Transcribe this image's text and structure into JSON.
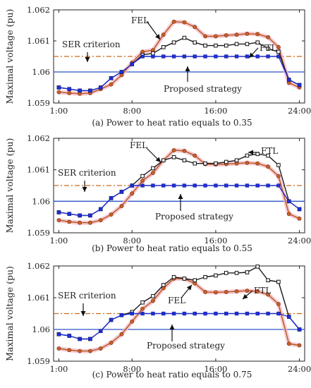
{
  "chart_data": [
    {
      "type": "line",
      "caption": "(a) Power to heat ratio equals to 0.35",
      "ylabel": "Maximal voltage (pu)",
      "xlim": [
        0.5,
        24.5
      ],
      "ylim": [
        1.059,
        1.062
      ],
      "xticks": [
        1,
        8,
        16,
        24
      ],
      "xtick_labels": [
        "1:00",
        "8:00",
        "16:00",
        "24:00"
      ],
      "yticks": [
        1.059,
        1.06,
        1.061,
        1.062
      ],
      "ytick_labels": [
        "1.059",
        "1.06",
        "1.061",
        "1.062"
      ],
      "x": [
        1,
        2,
        3,
        4,
        5,
        6,
        7,
        8,
        9,
        10,
        11,
        12,
        13,
        14,
        15,
        16,
        17,
        18,
        19,
        20,
        21,
        22,
        23,
        24
      ],
      "series": [
        {
          "name": "FEL",
          "color": "#b8541c",
          "marker": "circle",
          "values": [
            1.05935,
            1.05932,
            1.0593,
            1.05932,
            1.05945,
            1.0596,
            1.0599,
            1.0603,
            1.06065,
            1.0607,
            1.0612,
            1.06162,
            1.0616,
            1.06145,
            1.06115,
            1.06115,
            1.06118,
            1.0612,
            1.06123,
            1.06122,
            1.06112,
            1.0608,
            1.05965,
            1.0595
          ]
        },
        {
          "name": "FTL",
          "color": "#1a1a1a",
          "marker": "square",
          "values": [
            1.0595,
            1.05945,
            1.0594,
            1.0594,
            1.0595,
            1.0598,
            1.06,
            1.06025,
            1.06055,
            1.0606,
            1.0608,
            1.06095,
            1.0611,
            1.06095,
            1.06085,
            1.06085,
            1.06085,
            1.0609,
            1.0609,
            1.06095,
            1.06075,
            1.06065,
            1.05975,
            1.05958
          ]
        },
        {
          "name": "Proposed strategy",
          "color": "#1f2fd6",
          "marker": "square",
          "values": [
            1.0595,
            1.05945,
            1.0594,
            1.0594,
            1.0595,
            1.0598,
            1.06,
            1.06025,
            1.0605,
            1.0605,
            1.0605,
            1.0605,
            1.0605,
            1.0605,
            1.0605,
            1.0605,
            1.0605,
            1.0605,
            1.0605,
            1.0605,
            1.0605,
            1.0605,
            1.05975,
            1.05958
          ]
        }
      ],
      "reference_lines": [
        {
          "name": "SER criterion",
          "y": 1.0605,
          "color": "#c86a1c",
          "style": "dash-dot"
        },
        {
          "name": "",
          "y": 1.06,
          "color": "#2b55c8",
          "style": "solid"
        }
      ],
      "annotations": [
        "FEL",
        "FTL",
        "SER criterion",
        "Proposed strategy"
      ]
    },
    {
      "type": "line",
      "caption": "(b) Power to heat ratio equals to 0.55",
      "ylabel": "Maximal voltage (pu)",
      "xlim": [
        0.5,
        24.5
      ],
      "ylim": [
        1.059,
        1.062
      ],
      "xticks": [
        1,
        8,
        16,
        24
      ],
      "xtick_labels": [
        "1:00",
        "8:00",
        "16:00",
        "24:00"
      ],
      "yticks": [
        1.059,
        1.06,
        1.061,
        1.062
      ],
      "ytick_labels": [
        "1.059",
        "1.06",
        "1.061",
        "1.062"
      ],
      "x": [
        1,
        2,
        3,
        4,
        5,
        6,
        7,
        8,
        9,
        10,
        11,
        12,
        13,
        14,
        15,
        16,
        17,
        18,
        19,
        20,
        21,
        22,
        23,
        24
      ],
      "series": [
        {
          "name": "FEL",
          "color": "#b8541c",
          "marker": "circle",
          "values": [
            1.0594,
            1.05935,
            1.05932,
            1.05932,
            1.0594,
            1.05958,
            1.05985,
            1.06025,
            1.06065,
            1.0609,
            1.0613,
            1.06162,
            1.0616,
            1.06145,
            1.06118,
            1.06117,
            1.06118,
            1.0612,
            1.06122,
            1.0612,
            1.0611,
            1.0608,
            1.0596,
            1.05945
          ]
        },
        {
          "name": "FTL",
          "color": "#1a1a1a",
          "marker": "square",
          "values": [
            1.05965,
            1.0596,
            1.05955,
            1.05955,
            1.05975,
            1.0601,
            1.0603,
            1.0605,
            1.0608,
            1.06105,
            1.0613,
            1.0614,
            1.0613,
            1.0612,
            1.0612,
            1.0612,
            1.06125,
            1.0613,
            1.06145,
            1.0615,
            1.06145,
            1.06115,
            1.06,
            1.05975
          ]
        },
        {
          "name": "Proposed strategy",
          "color": "#1f2fd6",
          "marker": "square",
          "values": [
            1.05965,
            1.0596,
            1.05955,
            1.05955,
            1.05975,
            1.0601,
            1.0603,
            1.0605,
            1.0605,
            1.0605,
            1.0605,
            1.0605,
            1.0605,
            1.0605,
            1.0605,
            1.0605,
            1.0605,
            1.0605,
            1.0605,
            1.0605,
            1.0605,
            1.0605,
            1.06,
            1.05975
          ]
        }
      ],
      "reference_lines": [
        {
          "name": "SER criterion",
          "y": 1.0605,
          "color": "#c86a1c",
          "style": "dash-dot"
        },
        {
          "name": "",
          "y": 1.06,
          "color": "#2b55c8",
          "style": "solid"
        }
      ],
      "annotations": [
        "FEL",
        "FTL",
        "SER criterion",
        "Proposed strategy"
      ]
    },
    {
      "type": "line",
      "caption": "(c) Power to heat ratio equals to 0.75",
      "ylabel": "Maximal voltage (pu)",
      "xlim": [
        0.5,
        24.5
      ],
      "ylim": [
        1.059,
        1.062
      ],
      "xticks": [
        1,
        8,
        16,
        24
      ],
      "xtick_labels": [
        "1:00",
        "8:00",
        "16:00",
        "24:00"
      ],
      "yticks": [
        1.059,
        1.06,
        1.061,
        1.062
      ],
      "ytick_labels": [
        "1.059",
        "1.06",
        "1.061",
        "1.062"
      ],
      "x": [
        1,
        2,
        3,
        4,
        5,
        6,
        7,
        8,
        9,
        10,
        11,
        12,
        13,
        14,
        15,
        16,
        17,
        18,
        19,
        20,
        21,
        22,
        23,
        24
      ],
      "series": [
        {
          "name": "FEL",
          "color": "#b8541c",
          "marker": "circle",
          "values": [
            1.0594,
            1.05935,
            1.05932,
            1.05932,
            1.0594,
            1.05958,
            1.05985,
            1.06025,
            1.06065,
            1.0609,
            1.0613,
            1.0616,
            1.0616,
            1.06145,
            1.06118,
            1.06117,
            1.06118,
            1.0612,
            1.06122,
            1.0612,
            1.0611,
            1.0608,
            1.05955,
            1.0595
          ]
        },
        {
          "name": "FTL",
          "color": "#1a1a1a",
          "marker": "square",
          "values": [
            1.05985,
            1.0598,
            1.0597,
            1.0597,
            1.05995,
            1.0603,
            1.06045,
            1.06055,
            1.06085,
            1.06105,
            1.0614,
            1.06165,
            1.0616,
            1.06155,
            1.06165,
            1.0617,
            1.06178,
            1.06178,
            1.0618,
            1.06198,
            1.06155,
            1.0615,
            1.0604,
            1.06
          ]
        },
        {
          "name": "Proposed strategy",
          "color": "#1f2fd6",
          "marker": "square",
          "values": [
            1.05985,
            1.0598,
            1.0597,
            1.0597,
            1.05995,
            1.0603,
            1.06045,
            1.0605,
            1.0605,
            1.0605,
            1.0605,
            1.0605,
            1.0605,
            1.0605,
            1.0605,
            1.0605,
            1.0605,
            1.0605,
            1.0605,
            1.0605,
            1.0605,
            1.0605,
            1.0604,
            1.06
          ]
        }
      ],
      "reference_lines": [
        {
          "name": "SER criterion",
          "y": 1.0605,
          "color": "#c86a1c",
          "style": "dash-dot"
        },
        {
          "name": "",
          "y": 1.06,
          "color": "#2b55c8",
          "style": "solid"
        }
      ],
      "annotations": [
        "FEL",
        "FTL",
        "SER criterion",
        "Proposed strategy"
      ]
    }
  ]
}
